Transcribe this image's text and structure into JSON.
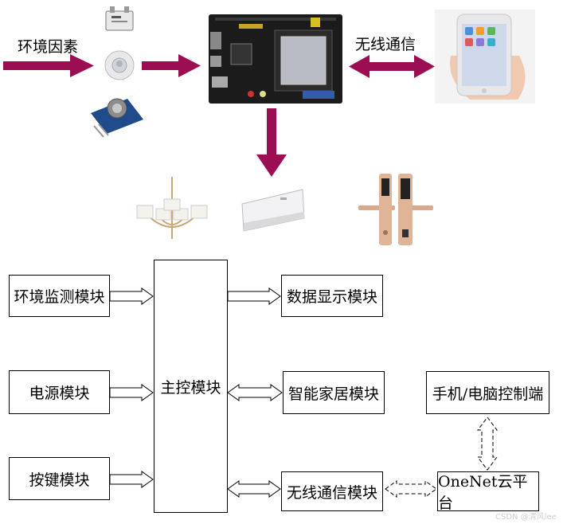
{
  "top": {
    "env_label": "环境因素",
    "wireless_label": "无线通信"
  },
  "blocks": {
    "env": "环境监测模块",
    "power": "电源模块",
    "keys": "按键模块",
    "main": "主控模块",
    "display": "数据显示模块",
    "home": "智能家居模块",
    "wireless": "无线通信模块",
    "terminal": "手机/电脑控制端",
    "cloud": "OneNet云平台"
  },
  "colors": {
    "arrow": "#9b0e54",
    "line": "#000000"
  },
  "icons": [
    "gas-sensor-icon",
    "pir-sensor-icon",
    "smoke-sensor-icon",
    "dev-board-icon",
    "smartphone-icon",
    "chandelier-icon",
    "air-conditioner-icon",
    "smart-lock-icon"
  ],
  "watermark": "CSDN @清风lee"
}
